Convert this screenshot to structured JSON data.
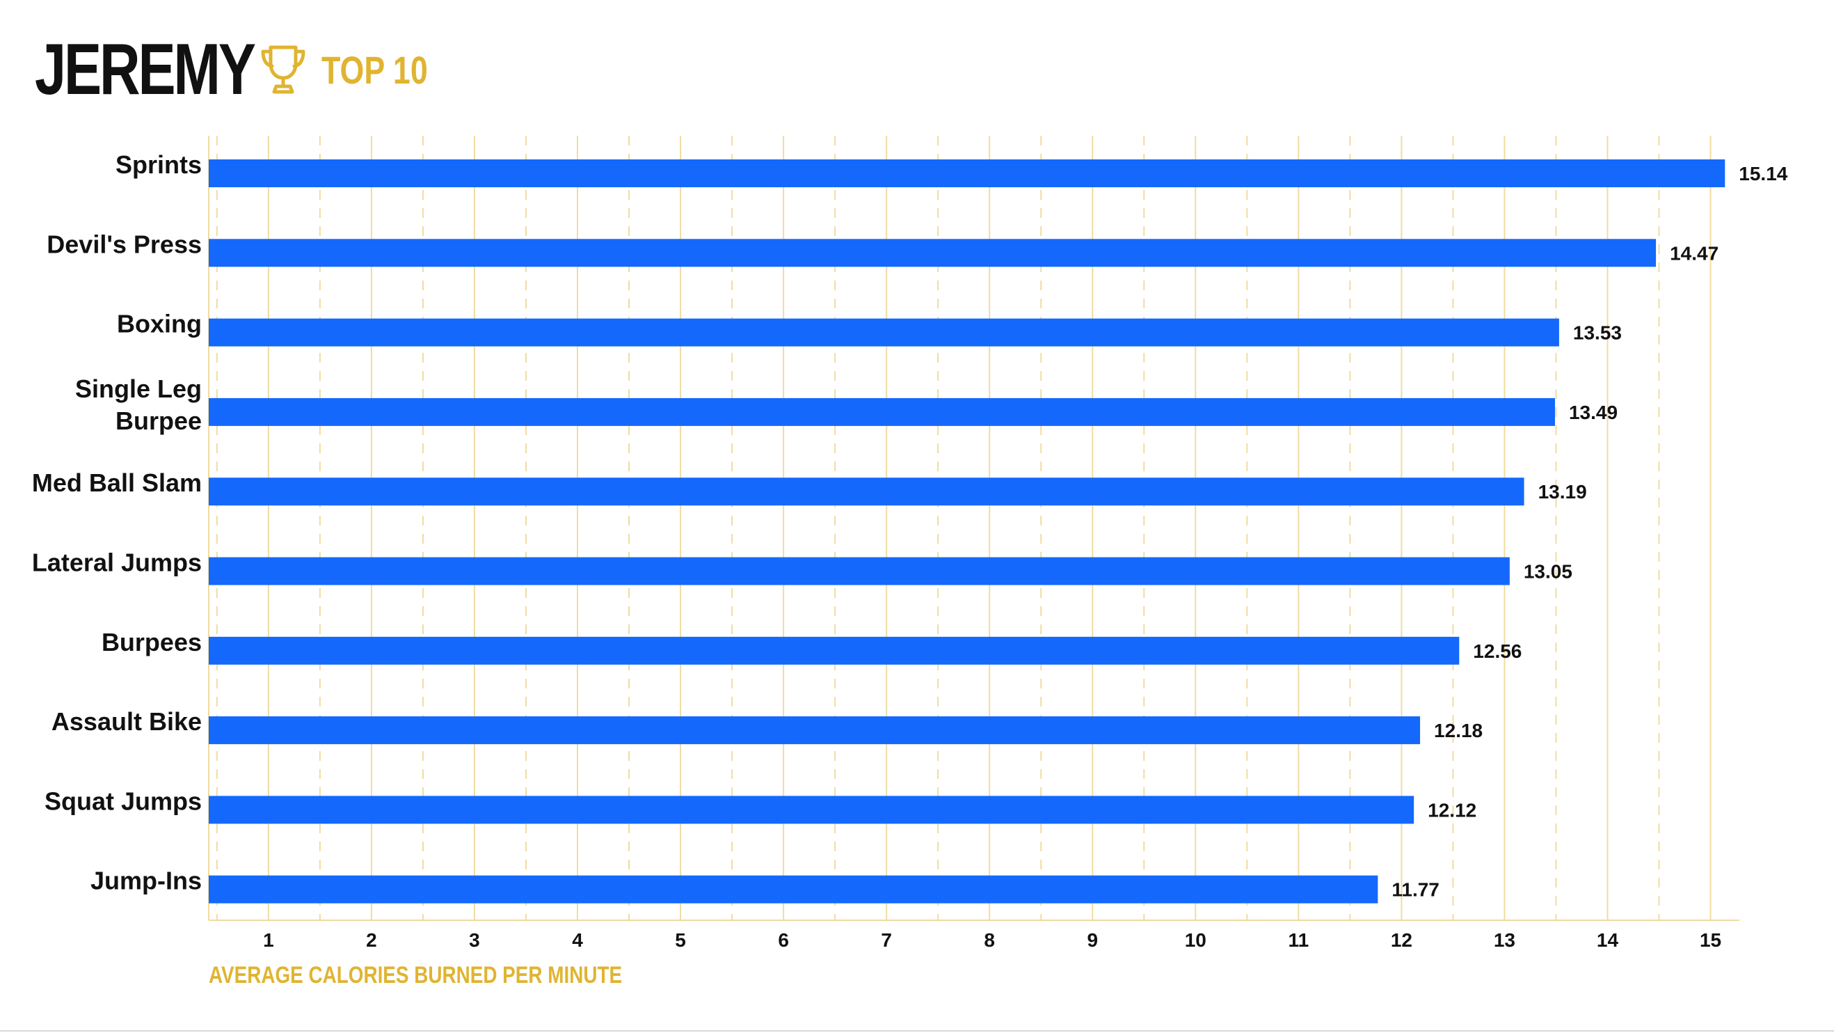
{
  "header": {
    "title": "JEREMY",
    "badge": "TOP 10",
    "trophy_icon": "trophy-icon"
  },
  "colors": {
    "bar": "#1469fc",
    "accent": "#e0b431",
    "grid": "#f0dca0",
    "text": "#111111"
  },
  "chart_data": {
    "type": "bar",
    "orientation": "horizontal",
    "categories": [
      "Sprints",
      "Devil's Press",
      "Boxing",
      "Single Leg\nBurpee",
      "Med Ball Slam",
      "Lateral Jumps",
      "Burpees",
      "Assault Bike",
      "Squat Jumps",
      "Jump-Ins"
    ],
    "values": [
      15.14,
      14.47,
      13.53,
      13.49,
      13.19,
      13.05,
      12.56,
      12.18,
      12.12,
      11.77
    ],
    "value_labels": [
      "15.14",
      "14.47",
      "13.53",
      "13.49",
      "13.19",
      "13.05",
      "12.56",
      "12.18",
      "12.12",
      "11.77"
    ],
    "xlabel": "AVERAGE CALORIES BURNED PER MINUTE",
    "ylabel": "",
    "xlim": [
      0.42,
      15.28
    ],
    "xticks": [
      1,
      2,
      3,
      4,
      5,
      6,
      7,
      8,
      9,
      10,
      11,
      12,
      13,
      14,
      15
    ],
    "grid": "vertical solid at integers, dashed at halves",
    "legend": "none"
  }
}
